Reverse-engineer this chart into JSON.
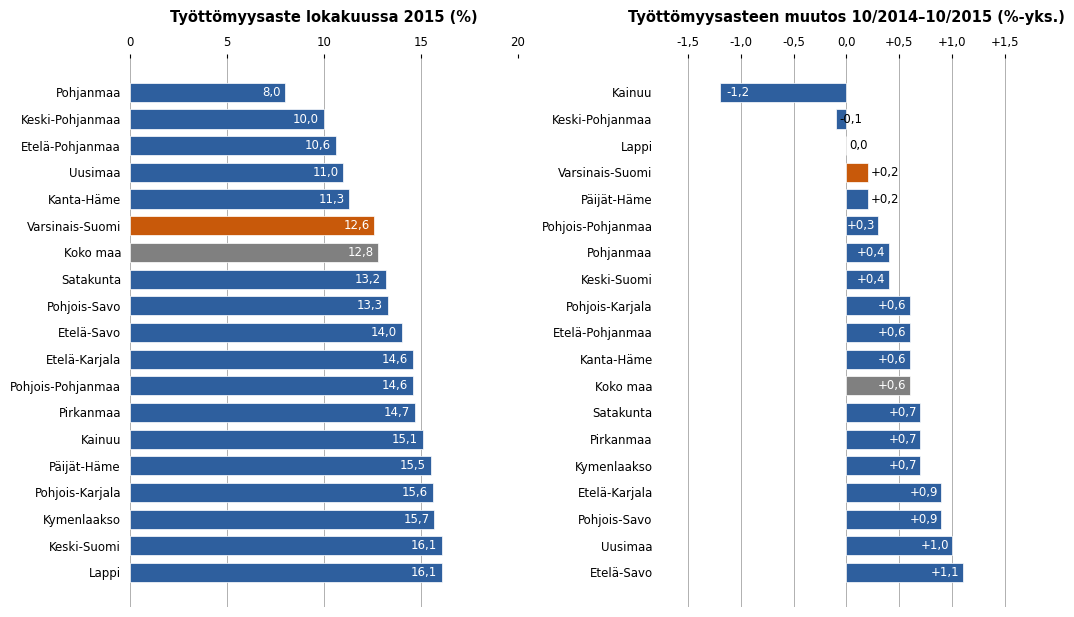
{
  "left_categories": [
    "Pohjanmaa",
    "Keski-Pohjanmaa",
    "Etelä-Pohjanmaa",
    "Uusimaa",
    "Kanta-Häme",
    "Varsinais-Suomi",
    "Koko maa",
    "Satakunta",
    "Pohjois-Savo",
    "Etelä-Savo",
    "Etelä-Karjala",
    "Pohjois-Pohjanmaa",
    "Pirkanmaa",
    "Kainuu",
    "Päijät-Häme",
    "Pohjois-Karjala",
    "Kymenlaakso",
    "Keski-Suomi",
    "Lappi"
  ],
  "left_values": [
    8.0,
    10.0,
    10.6,
    11.0,
    11.3,
    12.6,
    12.8,
    13.2,
    13.3,
    14.0,
    14.6,
    14.6,
    14.7,
    15.1,
    15.5,
    15.6,
    15.7,
    16.1,
    16.1
  ],
  "left_colors": [
    "#2e5f9e",
    "#2e5f9e",
    "#2e5f9e",
    "#2e5f9e",
    "#2e5f9e",
    "#c8590a",
    "#808080",
    "#2e5f9e",
    "#2e5f9e",
    "#2e5f9e",
    "#2e5f9e",
    "#2e5f9e",
    "#2e5f9e",
    "#2e5f9e",
    "#2e5f9e",
    "#2e5f9e",
    "#2e5f9e",
    "#2e5f9e",
    "#2e5f9e"
  ],
  "left_title": "Työttömyysaste lokakuussa 2015 (%)",
  "left_xlim": [
    0,
    20
  ],
  "left_xticks": [
    0,
    5,
    10,
    15,
    20
  ],
  "right_categories": [
    "Kainuu",
    "Keski-Pohjanmaa",
    "Lappi",
    "Varsinais-Suomi",
    "Päijät-Häme",
    "Pohjois-Pohjanmaa",
    "Pohjanmaa",
    "Keski-Suomi",
    "Pohjois-Karjala",
    "Etelä-Pohjanmaa",
    "Kanta-Häme",
    "Koko maa",
    "Satakunta",
    "Pirkanmaa",
    "Kymenlaakso",
    "Etelä-Karjala",
    "Pohjois-Savo",
    "Uusimaa",
    "Etelä-Savo"
  ],
  "right_values": [
    -1.2,
    -0.1,
    0.0,
    0.2,
    0.2,
    0.3,
    0.4,
    0.4,
    0.6,
    0.6,
    0.6,
    0.6,
    0.7,
    0.7,
    0.7,
    0.9,
    0.9,
    1.0,
    1.1
  ],
  "right_colors": [
    "#2e5f9e",
    "#2e5f9e",
    "#2e5f9e",
    "#c8590a",
    "#2e5f9e",
    "#2e5f9e",
    "#2e5f9e",
    "#2e5f9e",
    "#2e5f9e",
    "#2e5f9e",
    "#2e5f9e",
    "#808080",
    "#2e5f9e",
    "#2e5f9e",
    "#2e5f9e",
    "#2e5f9e",
    "#2e5f9e",
    "#2e5f9e",
    "#2e5f9e"
  ],
  "right_title": "Työttömyysasteen muutos 10/2014–10/2015 (%-yks.)",
  "right_xlim": [
    -1.75,
    1.75
  ],
  "right_xticks": [
    -1.5,
    -1.0,
    -0.5,
    0.0,
    0.5,
    1.0,
    1.5
  ],
  "right_xticklabels": [
    "-1,5",
    "-1,0",
    "-0,5",
    "0,0",
    "+0,5",
    "+1,0",
    "+1,5"
  ],
  "bg_color": "#ffffff",
  "bar_height": 0.72,
  "label_fontsize": 8.5,
  "tick_fontsize": 8.5,
  "title_fontsize": 10.5
}
